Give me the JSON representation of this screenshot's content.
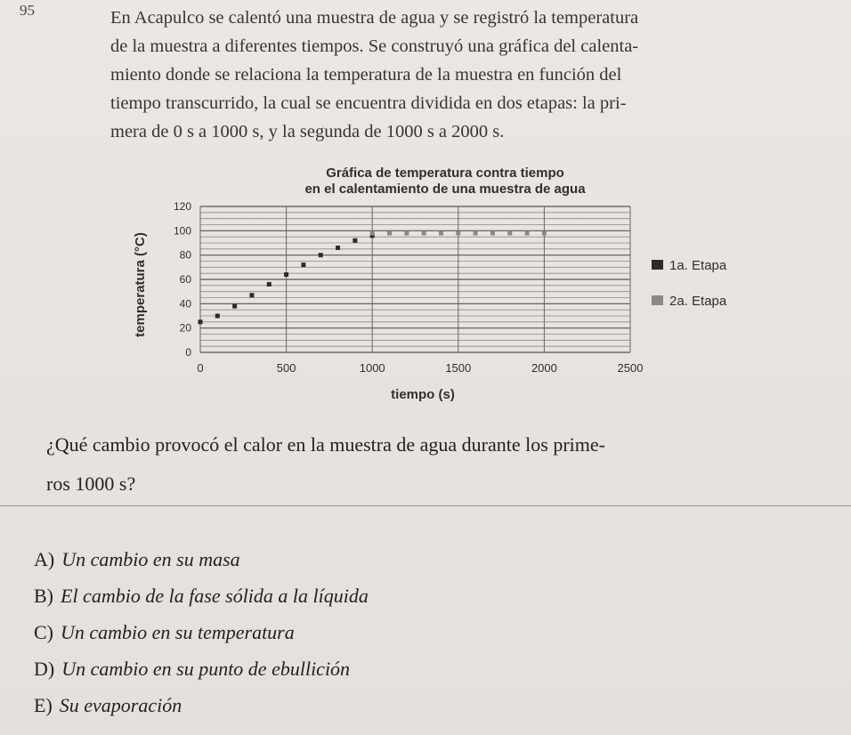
{
  "question_number": "95",
  "stem_lines": [
    "En Acapulco se calentó una muestra de agua y se registró la temperatura",
    "de la muestra a diferentes tiempos. Se construyó una gráfica del calenta-",
    "miento donde se relaciona la temperatura de la muestra en función del",
    "tiempo transcurrido, la cual se encuentra dividida en dos etapas: la pri-",
    "mera de 0 s a 1000 s, y la segunda de 1000 s a 2000 s."
  ],
  "chart_data": {
    "type": "scatter",
    "title_line1": "Gráfica de temperatura contra tiempo",
    "title_line2": "en el calentamiento de una muestra de agua",
    "xlabel": "tiempo (s)",
    "ylabel": "temperatura (°C)",
    "xlim": [
      0,
      2500
    ],
    "ylim": [
      0,
      120
    ],
    "x_ticks": [
      0,
      500,
      1000,
      1500,
      2000,
      2500
    ],
    "y_ticks": [
      0,
      20,
      40,
      60,
      80,
      100,
      120
    ],
    "grid": true,
    "legend_placement": "right",
    "series": [
      {
        "name": "1a. Etapa",
        "color": "#2b2b2b",
        "points": [
          [
            0,
            25
          ],
          [
            100,
            30
          ],
          [
            200,
            38
          ],
          [
            300,
            47
          ],
          [
            400,
            56
          ],
          [
            500,
            64
          ],
          [
            600,
            72
          ],
          [
            700,
            80
          ],
          [
            800,
            86
          ],
          [
            900,
            92
          ],
          [
            1000,
            96
          ]
        ]
      },
      {
        "name": "2a. Etapa",
        "color": "#8a8a8a",
        "points": [
          [
            1000,
            98
          ],
          [
            1100,
            98
          ],
          [
            1200,
            98
          ],
          [
            1300,
            98
          ],
          [
            1400,
            98
          ],
          [
            1500,
            98
          ],
          [
            1600,
            98
          ],
          [
            1700,
            98
          ],
          [
            1800,
            98
          ],
          [
            1900,
            98
          ],
          [
            2000,
            98
          ]
        ]
      }
    ]
  },
  "question_lines": [
    "¿Qué cambio provocó el calor en la muestra de agua durante los prime-",
    "ros 1000 s?"
  ],
  "options": [
    {
      "letter": "A)",
      "text": "Un cambio en su masa"
    },
    {
      "letter": "B)",
      "text": "El cambio de la fase sólida a la líquida"
    },
    {
      "letter": "C)",
      "text": "Un cambio en su temperatura"
    },
    {
      "letter": "D)",
      "text": "Un cambio en su punto de ebullición"
    },
    {
      "letter": "E)",
      "text": "Su evaporación"
    }
  ]
}
